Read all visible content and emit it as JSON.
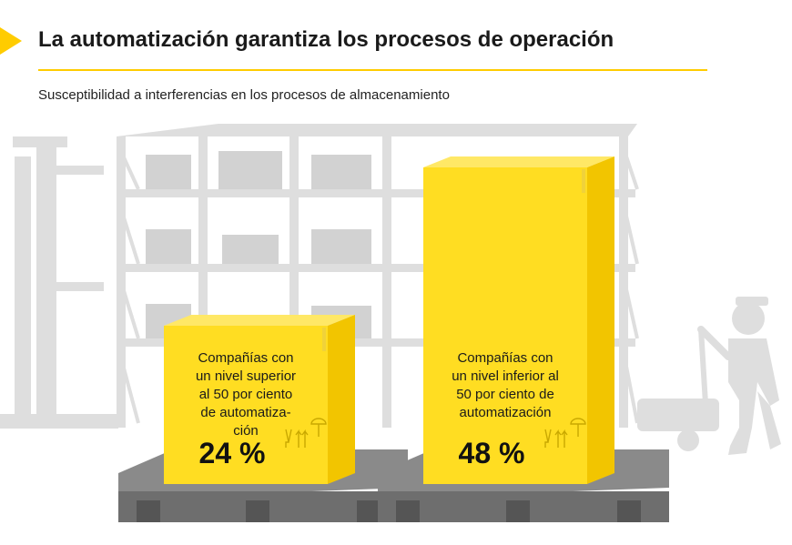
{
  "header": {
    "title": "La automatización garantiza los procesos de operación",
    "subtitle": "Susceptibilidad a interferencias en los procesos de almacenamiento"
  },
  "colors": {
    "accent": "#ffcc00",
    "box_front": "#ffdd22",
    "box_side": "#f2c500",
    "box_top": "#ffe866",
    "background_gray": "#dedede",
    "pallet": "#6e6e6e"
  },
  "icons": [
    "warehouse-shelf-icon",
    "forklift-icon",
    "worker-pallet-jack-icon",
    "fragile-glass-icon",
    "this-way-up-icon",
    "keep-dry-umbrella-icon"
  ],
  "chart_data": {
    "type": "bar",
    "categories": [
      "Compañías con un nivel superior al 50 por ciento de automatiza-ción",
      "Compañías con un nivel inferior al 50 por ciento de automatización"
    ],
    "values": [
      24,
      48
    ],
    "value_labels": [
      "24 %",
      "48 %"
    ],
    "label_lines": [
      [
        "Compañías con",
        "un nivel superior",
        "al 50 por ciento",
        "de automatiza-",
        "ción"
      ],
      [
        "Compañías con",
        "un nivel inferior al",
        "50 por ciento de",
        "automatización"
      ]
    ],
    "unit": "%",
    "ylim": [
      0,
      50
    ]
  }
}
